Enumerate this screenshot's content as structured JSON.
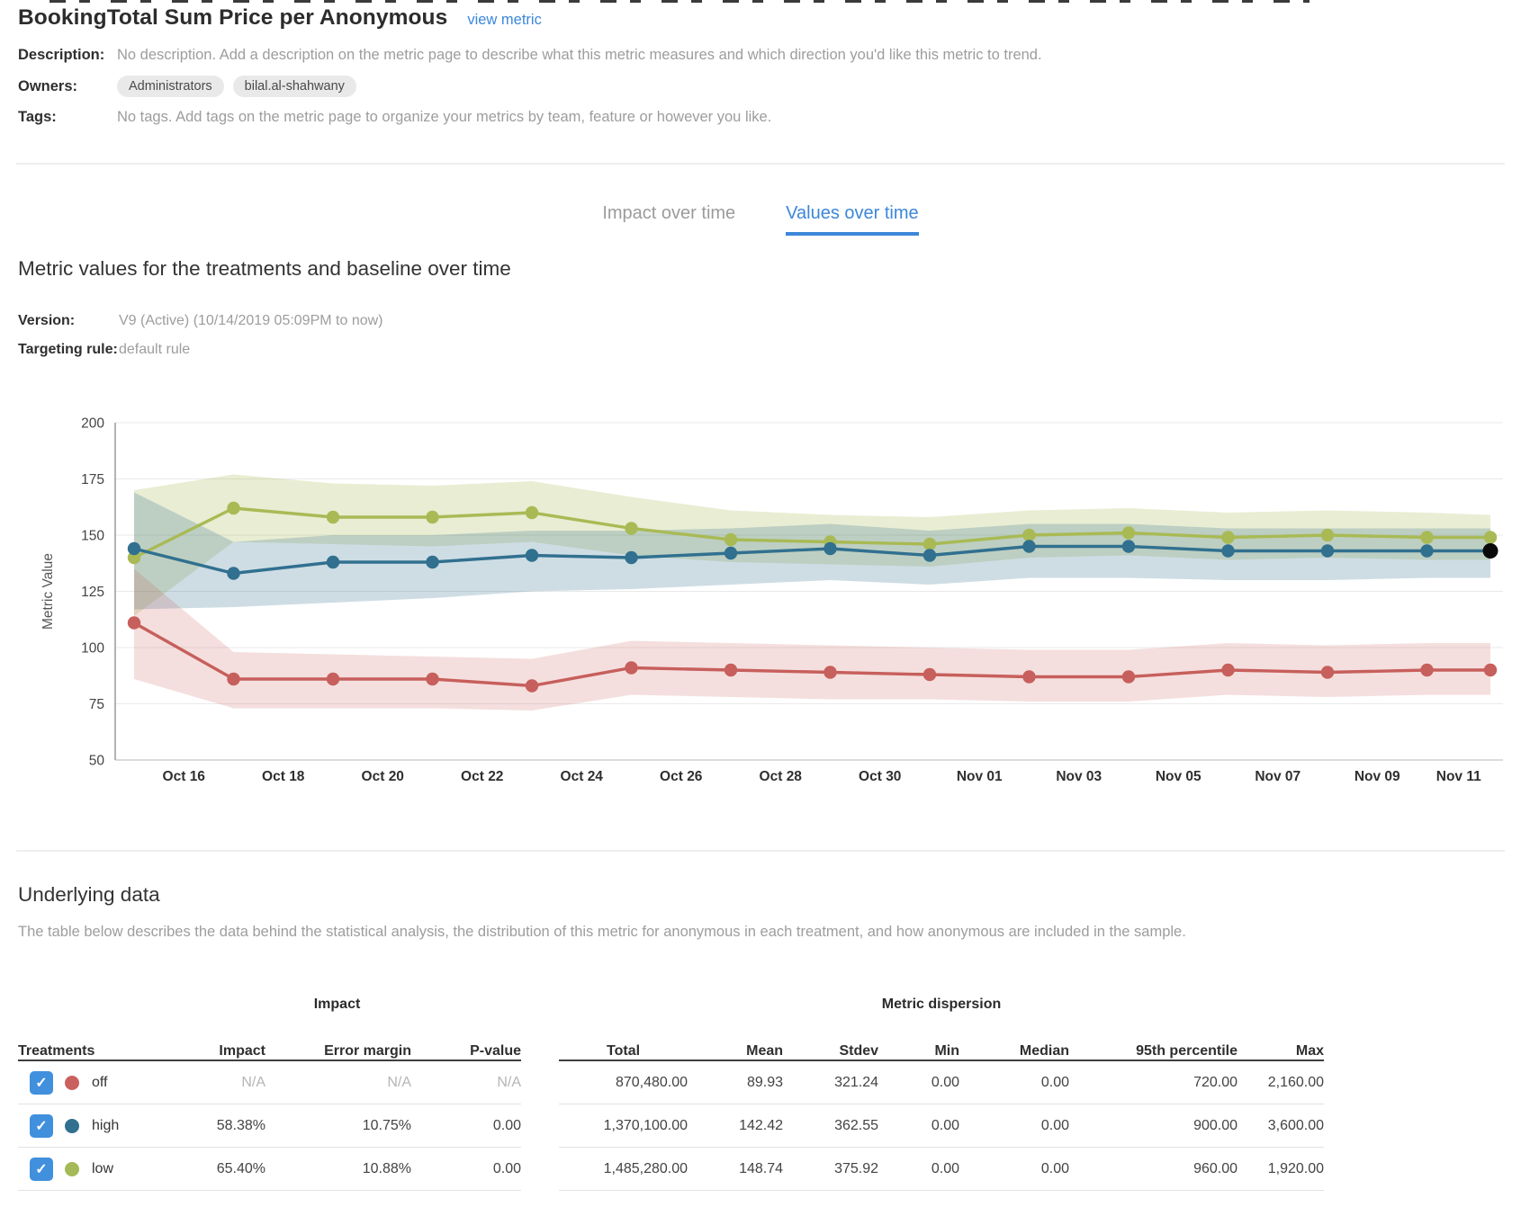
{
  "header": {
    "title": "BookingTotal Sum Price per Anonymous",
    "view_metric_link": "view metric",
    "description_label": "Description:",
    "description_text": "No description. Add a description on the metric page to describe what this metric measures and which direction you'd like this metric to trend.",
    "owners_label": "Owners:",
    "owners": [
      "Administrators",
      "bilal.al-shahwany"
    ],
    "tags_label": "Tags:",
    "tags_text": "No tags. Add tags on the metric page to organize your metrics by team, feature or however you like."
  },
  "tabs": {
    "impact_label": "Impact over time",
    "values_label": "Values over time"
  },
  "values_section": {
    "heading": "Metric values for the treatments and baseline over time",
    "version_label": "Version:",
    "version_value": "V9 (Active) (10/14/2019 05:09PM to now)",
    "targeting_label": "Targeting rule:",
    "targeting_value": "default rule"
  },
  "chart_data": {
    "type": "line",
    "title": "",
    "xlabel": "",
    "ylabel": "Metric Value",
    "ylim": [
      50,
      200
    ],
    "yticks": [
      50,
      75,
      100,
      125,
      150,
      175,
      200
    ],
    "grid": true,
    "legend_position": "none",
    "x_tick_labels": [
      "Oct 16",
      "Oct 18",
      "Oct 20",
      "Oct 22",
      "Oct 24",
      "Oct 26",
      "Oct 28",
      "Oct 30",
      "Nov 01",
      "Nov 03",
      "Nov 05",
      "Nov 07",
      "Nov 09",
      "Nov 11"
    ],
    "series": [
      {
        "name": "off",
        "color": "#c75f5c",
        "band_opacity": 0.2,
        "values": [
          111,
          86,
          86,
          86,
          83,
          91,
          90,
          89,
          88,
          87,
          87,
          90,
          89,
          90,
          90
        ],
        "lower": [
          86,
          73,
          73,
          73,
          72,
          79,
          78,
          77,
          77,
          76,
          76,
          79,
          78,
          79,
          79
        ],
        "upper": [
          135,
          98,
          97,
          96,
          95,
          103,
          102,
          101,
          100,
          99,
          99,
          102,
          101,
          102,
          102
        ]
      },
      {
        "name": "high",
        "color": "#31708f",
        "band_opacity": 0.24,
        "values": [
          144,
          133,
          138,
          138,
          141,
          140,
          142,
          144,
          141,
          145,
          145,
          143,
          143,
          143,
          143
        ],
        "lower": [
          117,
          118,
          120,
          122,
          125,
          126,
          128,
          130,
          128,
          131,
          131,
          130,
          130,
          131,
          131
        ],
        "upper": [
          169,
          147,
          150,
          150,
          152,
          152,
          153,
          155,
          152,
          155,
          155,
          153,
          153,
          153,
          153
        ]
      },
      {
        "name": "low",
        "color": "#a9ba55",
        "band_opacity": 0.26,
        "values": [
          140,
          162,
          158,
          158,
          160,
          153,
          148,
          147,
          146,
          150,
          151,
          149,
          150,
          149,
          149
        ],
        "lower": [
          114,
          147,
          146,
          145,
          147,
          141,
          138,
          137,
          136,
          140,
          141,
          139,
          140,
          139,
          139
        ],
        "upper": [
          170,
          177,
          173,
          172,
          174,
          167,
          161,
          159,
          158,
          161,
          162,
          160,
          161,
          160,
          159
        ]
      }
    ],
    "highlight_last_point": {
      "series": "high",
      "color": "#0a0a0a"
    }
  },
  "underlying": {
    "heading": "Underlying data",
    "description": "The table below describes the data behind the statistical analysis, the distribution of this metric for anonymous in each treatment, and how anonymous are included in the sample."
  },
  "table": {
    "treatments_header": "Treatments",
    "impact_group": "Impact",
    "dispersion_group": "Metric dispersion",
    "columns": [
      "Impact",
      "Error margin",
      "P-value",
      "Total",
      "Mean",
      "Stdev",
      "Min",
      "Median",
      "95th percentile",
      "Max"
    ],
    "rows": [
      {
        "name": "off",
        "color": "#c9615e",
        "checked": true,
        "impact": "N/A",
        "error_margin": "N/A",
        "p_value": "N/A",
        "total": "870,480.00",
        "mean": "89.93",
        "stdev": "321.24",
        "min": "0.00",
        "median": "0.00",
        "p95": "720.00",
        "max": "2,160.00"
      },
      {
        "name": "high",
        "color": "#31708f",
        "checked": true,
        "impact": "58.38%",
        "error_margin": "10.75%",
        "p_value": "0.00",
        "total": "1,370,100.00",
        "mean": "142.42",
        "stdev": "362.55",
        "min": "0.00",
        "median": "0.00",
        "p95": "900.00",
        "max": "3,600.00"
      },
      {
        "name": "low",
        "color": "#a6b957",
        "checked": true,
        "impact": "65.40%",
        "error_margin": "10.88%",
        "p_value": "0.00",
        "total": "1,485,280.00",
        "mean": "148.74",
        "stdev": "375.92",
        "min": "0.00",
        "median": "0.00",
        "p95": "960.00",
        "max": "1,920.00"
      }
    ],
    "checkmark": "✓"
  },
  "colors": {
    "accent_blue": "#3c87d9",
    "checkbox_blue": "#4190dd",
    "series_off": "#c75f5c",
    "series_high": "#31708f",
    "series_low": "#a9ba55",
    "highlight_black": "#0a0a0a"
  }
}
